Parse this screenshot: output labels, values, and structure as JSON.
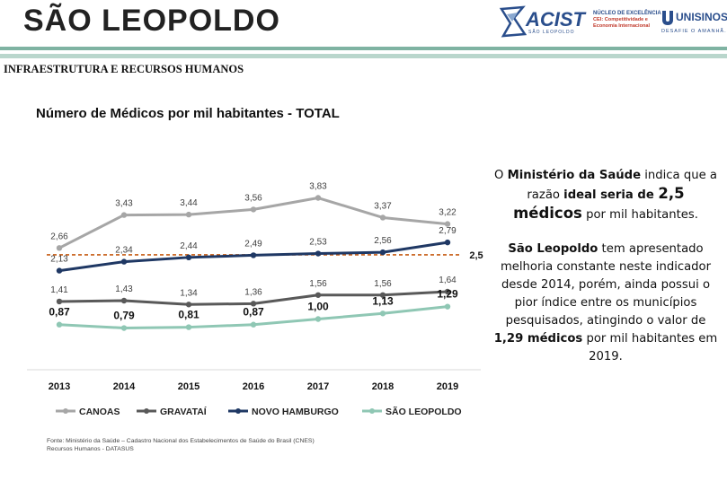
{
  "header": {
    "title": "SÃO LEOPOLDO",
    "logos": {
      "acist": "ACIST",
      "acist_sub": "SÃO LEOPOLDO",
      "nucleo_line1": "NÚCLEO DE EXCELÊNCIA",
      "nucleo_line2": "CEI: Competitividade e",
      "nucleo_line3": "Economia Internacional",
      "unisinos": "UNISINOS",
      "unisinos_tagline": "DESAFIE O AMANHÃ."
    }
  },
  "section_heading": "INFRAESTRUTURA E RECURSOS HUMANOS",
  "chart_data": {
    "type": "line",
    "title": "Número de Médicos por mil habitantes - TOTAL",
    "categories": [
      "2013",
      "2014",
      "2015",
      "2016",
      "2017",
      "2018",
      "2019"
    ],
    "series": [
      {
        "name": "CANOAS",
        "color": "#a6a6a6",
        "values": [
          2.66,
          3.43,
          3.44,
          3.56,
          3.83,
          3.37,
          3.22
        ],
        "labels": [
          "2,66",
          "3,43",
          "3,44",
          "3,56",
          "3,83",
          "3,37",
          "3,22"
        ],
        "bold_labels": false
      },
      {
        "name": "GRAVATAÍ",
        "color": "#595959",
        "values": [
          1.41,
          1.43,
          1.34,
          1.36,
          1.56,
          1.56,
          1.64
        ],
        "labels": [
          "1,41",
          "1,43",
          "1,34",
          "1,36",
          "1,56",
          "1,56",
          "1,64"
        ],
        "bold_labels": false
      },
      {
        "name": "NOVO HAMBURGO",
        "color": "#1f3864",
        "values": [
          2.13,
          2.34,
          2.44,
          2.49,
          2.53,
          2.56,
          2.79
        ],
        "labels": [
          "2,13",
          "2,34",
          "2,44",
          "2,49",
          "2,53",
          "2,56",
          "2,79"
        ],
        "bold_labels": false
      },
      {
        "name": "SÃO LEOPOLDO",
        "color": "#8fc7b4",
        "values": [
          0.87,
          0.79,
          0.81,
          0.87,
          1.0,
          1.13,
          1.29
        ],
        "labels": [
          "0,87",
          "0,79",
          "0,81",
          "0,87",
          "1,00",
          "1,13",
          "1,29"
        ],
        "bold_labels": true
      }
    ],
    "reference_line": {
      "value": 2.5,
      "label": "2,5",
      "color": "#c55a11",
      "style": "dashed"
    },
    "legend_position": "bottom",
    "grid": false
  },
  "source_note": "Fonte: Ministério da Saúde – Cadastro Nacional dos Estabelecimentos de Saúde do Brasil (CNES) Recursos Humanos - DATASUS",
  "info_panel": {
    "p1_a": "O ",
    "p1_b": "Ministério da Saúde",
    "p1_c": " indica que a razão ",
    "p1_d": "ideal seria de ",
    "p1_e": "2,5 médicos",
    "p1_f": " por mil habitantes.",
    "p2_a": "São Leopoldo",
    "p2_b": " tem apresentado melhoria constante neste indicador desde 2014, porém, ainda possui o pior índice entre os municípios pesquisados, atingindo o valor de ",
    "p2_c": "1,29 médicos",
    "p2_d": " por mil habitantes em 2019."
  }
}
